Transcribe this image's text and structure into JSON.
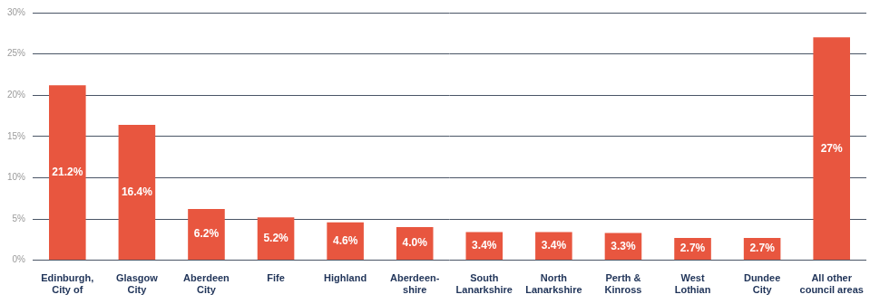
{
  "chart_data": {
    "type": "bar",
    "categories": [
      [
        "Edinburgh,",
        "City of"
      ],
      [
        "Glasgow",
        "City"
      ],
      [
        "Aberdeen",
        "City"
      ],
      "Fife",
      "Highland",
      [
        "Aberdeen-",
        "shire"
      ],
      [
        "South",
        "Lanarkshire"
      ],
      [
        "North",
        "Lanarkshire"
      ],
      [
        "Perth &",
        "Kinross"
      ],
      [
        "West",
        "Lothian"
      ],
      [
        "Dundee",
        "City"
      ],
      [
        "All other",
        "council areas"
      ]
    ],
    "values": [
      21.2,
      16.4,
      6.2,
      5.2,
      4.6,
      4.0,
      3.4,
      3.4,
      3.3,
      2.7,
      2.7,
      27
    ],
    "value_labels": [
      "21.2%",
      "16.4%",
      "6.2%",
      "5.2%",
      "4.6%",
      "4.0%",
      "3.4%",
      "3.4%",
      "3.3%",
      "2.7%",
      "2.7%",
      "27%"
    ],
    "data_labels": true,
    "color": "#e8563f",
    "ylim": [
      0,
      30
    ],
    "yticks": [
      {
        "value": 0,
        "label": "0%"
      },
      {
        "value": 5,
        "label": "5%"
      },
      {
        "value": 10,
        "label": "10%"
      },
      {
        "value": 15,
        "label": "15%"
      },
      {
        "value": 20,
        "label": "20%"
      },
      {
        "value": 25,
        "label": "25%"
      },
      {
        "value": 30,
        "label": "30%"
      }
    ],
    "grid": true
  }
}
